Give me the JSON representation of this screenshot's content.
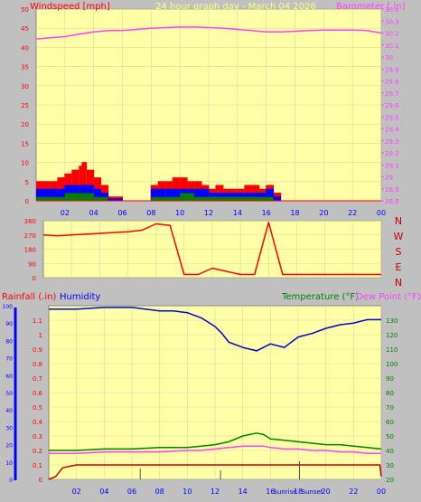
{
  "colors": {
    "background": "#c0c0c0",
    "plot": "#ffffa8",
    "grid": "#d8d8a0",
    "wind": "#ff0000",
    "gust": "#ff0000",
    "wind_avg": "#0000ff",
    "wind_low": "#008000",
    "barometer": "#ff40ff",
    "direction": "#ff0000",
    "direction_letters": "#c00000",
    "rain": "#c00000",
    "humidity": "#0000cc",
    "temperature": "#008000",
    "dewpoint": "#ff40ff",
    "title": "#ffff80",
    "axis_left": "#ff0000",
    "axis_blue": "#0000ff",
    "axis_green": "#008000",
    "sun": "#0000cc"
  },
  "chart_data": [
    {
      "type": "line",
      "title": "24 hour graph day - March 04 2026",
      "y_left_label": "Windspeed [mph]",
      "y_right_label": "Barometer [.in]",
      "x_ticks": [
        "02",
        "04",
        "06",
        "08",
        "10",
        "12",
        "14",
        "16",
        "18",
        "20",
        "22",
        "00"
      ],
      "x_range": [
        0,
        24
      ],
      "ylim_left": [
        0,
        50
      ],
      "y_ticks_left": [
        "0",
        "5",
        "10",
        "15",
        "20",
        "25",
        "30",
        "35",
        "40",
        "45",
        "50"
      ],
      "ylim_right": [
        28.8,
        30.4
      ],
      "y_ticks_right": [
        "28.8",
        "28.9",
        "29",
        "29.1",
        "29.2",
        "29.3",
        "29.4",
        "29.5",
        "29.6",
        "29.7",
        "29.8",
        "29.9",
        "30",
        "30.1",
        "30.2",
        "30.3",
        "30.4"
      ],
      "grid": true,
      "series": [
        {
          "x": [
            0,
            1,
            2,
            3,
            4,
            5,
            6,
            7,
            8,
            9,
            10,
            11,
            12,
            13,
            14,
            15,
            16,
            17,
            18,
            19,
            20,
            21,
            22,
            23,
            24
          ],
          "y": [
            30.15,
            30.16,
            30.17,
            30.19,
            30.21,
            30.22,
            30.22,
            30.23,
            30.24,
            30.245,
            30.25,
            30.25,
            30.245,
            30.24,
            30.23,
            30.22,
            30.21,
            30.21,
            30.215,
            30.22,
            30.225,
            30.225,
            30.225,
            30.22,
            30.2
          ]
        },
        {
          "x": [
            0,
            1,
            1.5,
            2,
            2.5,
            3,
            3.2,
            3.5,
            4,
            4.5,
            5,
            6,
            7,
            8,
            8.5,
            9,
            9.5,
            10,
            10.5,
            11,
            11.5,
            12,
            12.5,
            13,
            13.5,
            14,
            14.5,
            15,
            15.5,
            16,
            16.5,
            17,
            18,
            19,
            20,
            21,
            22,
            23,
            24
          ],
          "y": [
            5,
            5,
            6,
            7,
            8,
            9,
            10,
            8,
            6,
            4,
            1,
            0,
            0,
            4,
            5,
            5,
            6,
            6,
            5,
            5,
            4,
            3,
            4,
            3,
            3,
            3,
            4,
            4,
            3,
            4,
            2,
            0,
            0,
            0,
            0,
            0,
            0,
            0,
            0
          ]
        },
        {
          "x": [
            0,
            1,
            2,
            3,
            4,
            4.5,
            5,
            6,
            7,
            8,
            9,
            10,
            11,
            12,
            13,
            14,
            15,
            16,
            16.5,
            17,
            24
          ],
          "y": [
            3,
            3,
            4,
            4,
            3,
            2,
            0.5,
            0,
            0,
            3,
            3,
            3,
            3,
            2,
            2,
            2,
            2,
            3,
            1,
            0,
            0
          ]
        },
        {
          "x": [
            0,
            1,
            2,
            3,
            4,
            4.5,
            5,
            6,
            7,
            8,
            9,
            10,
            11,
            12,
            13,
            14,
            15,
            16,
            16.5,
            17,
            24
          ],
          "y": [
            1,
            1,
            2,
            2,
            1,
            1,
            0,
            0,
            0,
            1,
            1,
            2,
            1,
            1,
            1,
            1,
            1,
            1,
            0,
            0,
            0
          ]
        }
      ]
    },
    {
      "type": "line",
      "x_range": [
        0,
        24
      ],
      "ylim": [
        0,
        360
      ],
      "y_ticks": [
        "0",
        "90",
        "180",
        "270",
        "360"
      ],
      "direction_letters": [
        "N",
        "W",
        "S",
        "E",
        "N"
      ],
      "grid": true,
      "series": [
        {
          "x": [
            0,
            1,
            2,
            3,
            4,
            5,
            6,
            7,
            8,
            9,
            10,
            11,
            12,
            13,
            14,
            15,
            16,
            17,
            18,
            19,
            20,
            21,
            22,
            23,
            24
          ],
          "y": [
            270,
            265,
            270,
            275,
            280,
            285,
            290,
            300,
            340,
            330,
            20,
            20,
            60,
            40,
            20,
            20,
            350,
            20,
            20,
            20,
            20,
            20,
            20,
            20,
            20
          ]
        }
      ]
    },
    {
      "type": "line",
      "y_left_label_1": "Rainfall (.in)",
      "y_left_label_2": "Humidity",
      "y_right_label_1": "Temperature (°F)",
      "y_right_label_2": "Dew Point (°F)",
      "x_ticks": [
        "02",
        "04",
        "06",
        "08",
        "10",
        "12",
        "14",
        "16",
        "18",
        "20",
        "22",
        "00"
      ],
      "x_range": [
        0,
        24
      ],
      "ylim_rain": [
        0,
        1.2
      ],
      "y_ticks_rain": [
        "0",
        "0.1",
        "0.2",
        "0.3",
        "0.4",
        "0.5",
        "0.6",
        "0.7",
        "0.8",
        "0.9",
        "1",
        "1.1"
      ],
      "ylim_humidity": [
        0,
        100
      ],
      "y_ticks_humidity": [
        "0",
        "10",
        "20",
        "30",
        "40",
        "50",
        "60",
        "70",
        "80",
        "90",
        "100"
      ],
      "ylim_temp": [
        20,
        140
      ],
      "y_ticks_temp": [
        "20",
        "30",
        "40",
        "50",
        "60",
        "70",
        "80",
        "90",
        "100",
        "110",
        "120",
        "130"
      ],
      "sun_markers": [
        "Sunrise",
        "Sunset"
      ],
      "grid": true,
      "series": [
        {
          "x": [
            0,
            2,
            4,
            6,
            7,
            8,
            9,
            10,
            11,
            12,
            12.5,
            13,
            14,
            15,
            16,
            17,
            18,
            19,
            20,
            21,
            22,
            23,
            24
          ],
          "y": [
            98,
            98,
            99,
            99,
            98,
            97,
            97,
            96,
            93,
            88,
            84,
            79,
            76,
            74,
            78,
            76,
            82,
            84,
            87,
            89,
            90,
            92,
            92
          ]
        },
        {
          "x": [
            0,
            2,
            4,
            6,
            8,
            10,
            11,
            12,
            13,
            14,
            15,
            15.5,
            16,
            17,
            18,
            19,
            20,
            21,
            22,
            23,
            24
          ],
          "y": [
            40,
            40,
            41,
            41,
            42,
            42,
            43,
            44,
            46,
            50,
            52,
            51,
            48,
            47,
            46,
            45,
            44,
            44,
            43,
            42,
            41
          ]
        },
        {
          "x": [
            0,
            2,
            4,
            6,
            8,
            10,
            11,
            12,
            13,
            14,
            15,
            15.5,
            16,
            17,
            18,
            19,
            20,
            21,
            22,
            23,
            24
          ],
          "y": [
            38,
            38,
            39,
            39,
            39,
            40,
            40,
            41,
            42,
            43,
            43,
            43,
            42,
            41,
            41,
            40,
            40,
            39,
            39,
            38,
            38
          ]
        },
        {
          "x": [
            0,
            0.5,
            1,
            2,
            4,
            6,
            8,
            10,
            12,
            14,
            16,
            18,
            20,
            22,
            23.9,
            24
          ],
          "y": [
            0,
            0.02,
            0.08,
            0.1,
            0.1,
            0.1,
            0.1,
            0.1,
            0.1,
            0.1,
            0.1,
            0.1,
            0.1,
            0.1,
            0.1,
            0.02
          ]
        }
      ]
    }
  ]
}
